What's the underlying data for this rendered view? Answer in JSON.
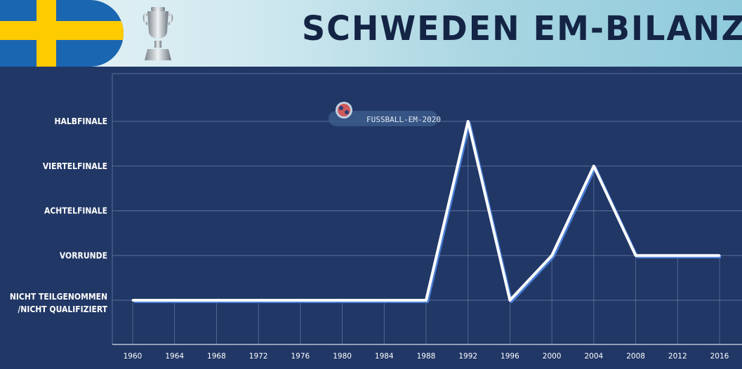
{
  "header": {
    "title": "SCHWEDEN EM-BILANZ",
    "flag_colors": {
      "blue": "#1b66b1",
      "yellow": "#fecb00"
    },
    "trophy_icon": "trophy-icon"
  },
  "watermark": {
    "text": "FUSSBALL-EM-2020",
    "icon": "soccer-ball-icon"
  },
  "colors": {
    "background": "#213766",
    "line": "#ffffff",
    "line_shadow": "#4a7fd6",
    "grid": "#5b6f99"
  },
  "chart_data": {
    "type": "line",
    "title": "SCHWEDEN EM-BILANZ",
    "xlabel": "",
    "ylabel": "",
    "x": [
      "1960",
      "1964",
      "1968",
      "1972",
      "1976",
      "1980",
      "1984",
      "1988",
      "1992",
      "1996",
      "2000",
      "2004",
      "2008",
      "2012",
      "2016"
    ],
    "categories_y": [
      "NICHT TEILGENOMMEN /NICHT QUALIFIZIERT",
      "VORRUNDE",
      "ACHTELFINALE",
      "VIERTELFINALE",
      "HALBFINALE"
    ],
    "y_tick_lines": [
      [
        "NICHT TEILGENOMMEN",
        "/NICHT QUALIFIZIERT"
      ],
      [
        "VORRUNDE"
      ],
      [
        "ACHTELFINALE"
      ],
      [
        "VIERTELFINALE"
      ],
      [
        "HALBFINALE"
      ]
    ],
    "values": [
      0,
      0,
      0,
      0,
      0,
      0,
      0,
      0,
      4,
      0,
      1,
      3,
      1,
      1,
      1
    ],
    "ylim": [
      0,
      4
    ],
    "grid": true
  }
}
